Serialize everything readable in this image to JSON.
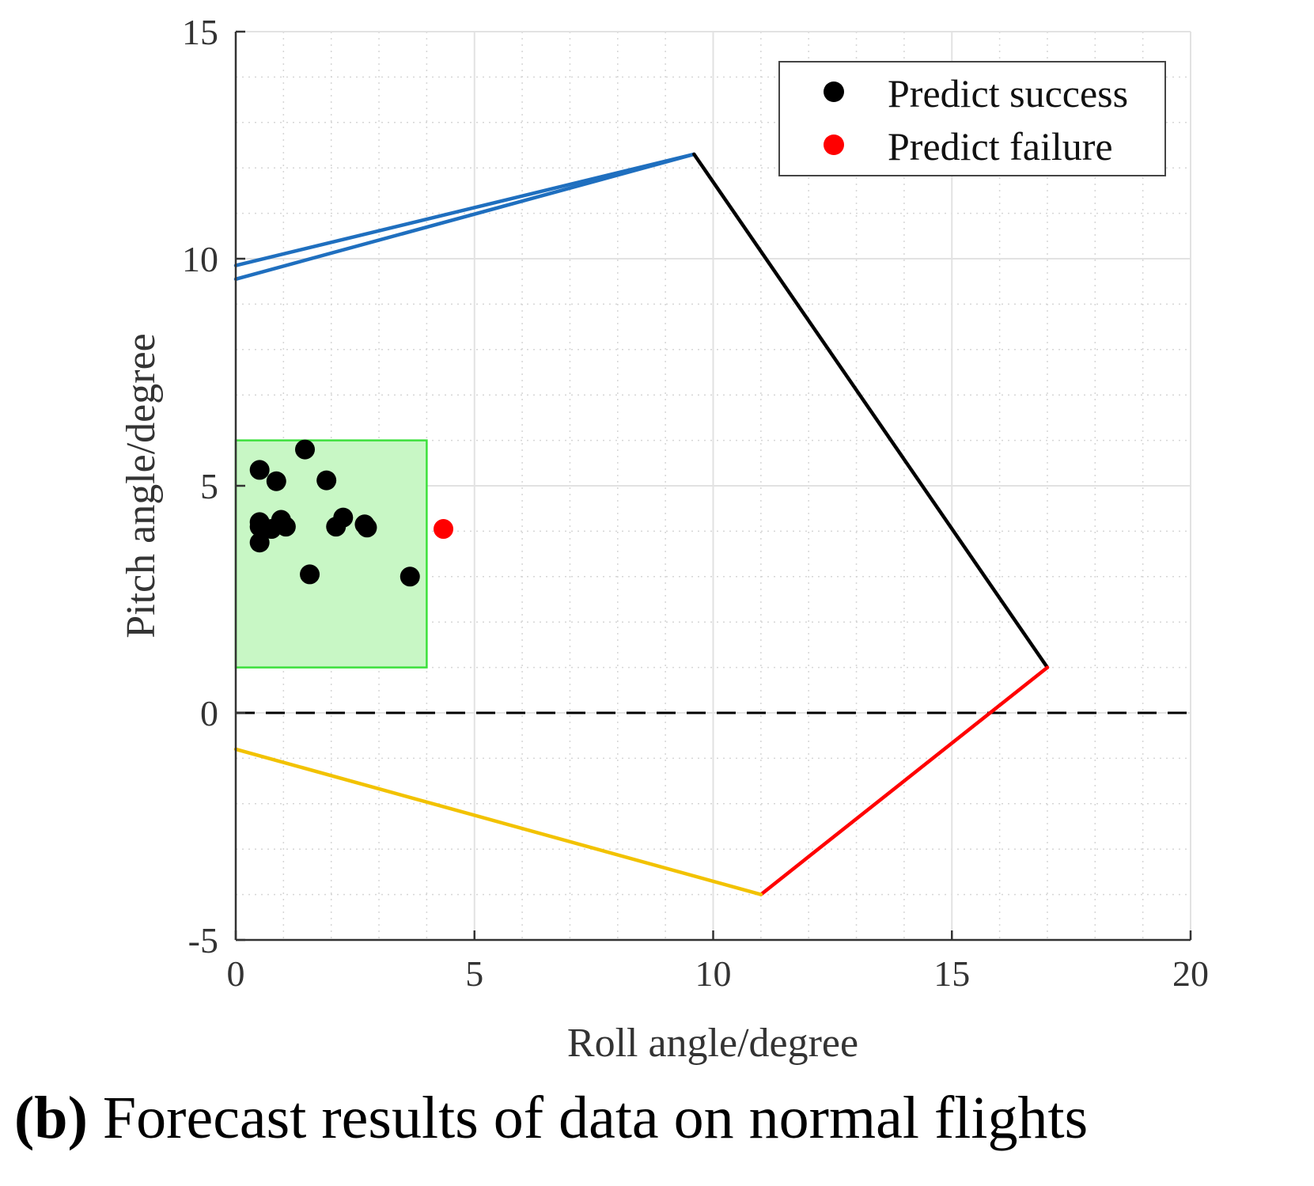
{
  "chart_data": {
    "type": "scatter",
    "xlabel": "Roll angle/degree",
    "ylabel": "Pitch angle/degree",
    "xlim": [
      0,
      20
    ],
    "ylim": [
      -5,
      15
    ],
    "xticks": [
      "0",
      "5",
      "10",
      "15",
      "20"
    ],
    "yticks": [
      "-5",
      "0",
      "5",
      "10",
      "15"
    ],
    "grid": true,
    "minor_grid": true,
    "legend_position": "top-right",
    "legend": [
      {
        "name": "Predict success",
        "color": "#000000"
      },
      {
        "name": "Predict failure",
        "color": "#ff0000"
      }
    ],
    "series": [
      {
        "name": "Predict success",
        "color": "#000000",
        "points": [
          [
            0.5,
            5.35
          ],
          [
            0.85,
            5.1
          ],
          [
            1.45,
            5.8
          ],
          [
            1.9,
            5.12
          ],
          [
            0.5,
            4.2
          ],
          [
            0.5,
            4.1
          ],
          [
            0.75,
            4.05
          ],
          [
            0.95,
            4.25
          ],
          [
            1.05,
            4.1
          ],
          [
            2.1,
            4.1
          ],
          [
            2.25,
            4.3
          ],
          [
            2.7,
            4.15
          ],
          [
            2.75,
            4.08
          ],
          [
            0.5,
            3.75
          ],
          [
            1.55,
            3.05
          ],
          [
            3.65,
            3.0
          ]
        ]
      },
      {
        "name": "Predict failure",
        "color": "#ff0000",
        "points": [
          [
            4.35,
            4.05
          ]
        ]
      }
    ],
    "safe_region": {
      "color": "#c8f7c5",
      "border_color": "#3ce03c",
      "x": [
        0,
        4
      ],
      "y": [
        1,
        6
      ]
    },
    "boundary_lines": [
      {
        "color": "#1f6fbf",
        "points": [
          [
            0,
            9.85
          ],
          [
            9.6,
            12.3
          ]
        ]
      },
      {
        "color": "#1f6fbf",
        "points": [
          [
            0,
            9.55
          ],
          [
            9.6,
            12.3
          ]
        ]
      },
      {
        "color": "#000000",
        "points": [
          [
            9.6,
            12.3
          ],
          [
            17,
            1.0
          ]
        ]
      },
      {
        "color": "#ff0000",
        "points": [
          [
            17,
            1.0
          ],
          [
            11,
            -4.0
          ]
        ]
      },
      {
        "color": "#f2c200",
        "points": [
          [
            11,
            -4.0
          ],
          [
            0,
            -0.8
          ]
        ]
      }
    ],
    "reference_line": {
      "y": 0,
      "style": "dashed",
      "color": "#000000"
    }
  },
  "caption": {
    "label": "(b)",
    "text": " Forecast results of data on normal flights"
  }
}
